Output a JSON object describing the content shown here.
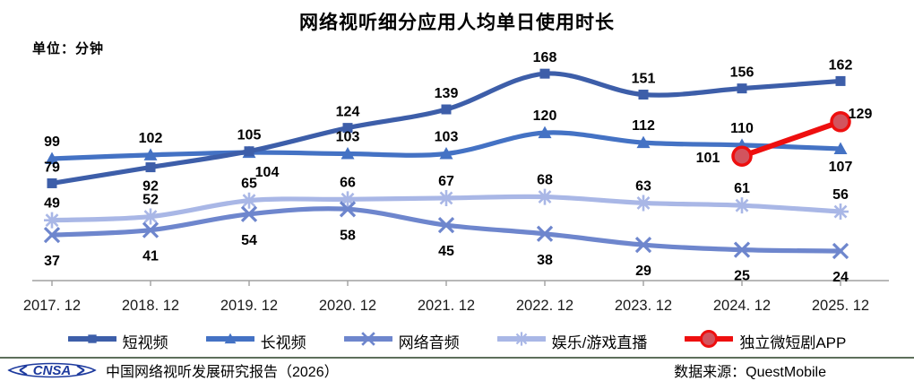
{
  "title": "网络视听细分应用人均单日使用时长",
  "unit_label": "单位：分钟",
  "chart_data": {
    "type": "line",
    "categories": [
      "2017. 12",
      "2018. 12",
      "2019. 12",
      "2020. 12",
      "2021. 12",
      "2022. 12",
      "2023. 12",
      "2024. 12",
      "2025. 12"
    ],
    "series": [
      {
        "name": "短视频",
        "marker": "square",
        "color": "#3d5ea9",
        "values": [
          79,
          92,
          105,
          124,
          139,
          168,
          151,
          156,
          162
        ]
      },
      {
        "name": "长视频",
        "marker": "triangle",
        "color": "#4472c4",
        "values": [
          99,
          102,
          104,
          103,
          103,
          120,
          112,
          110,
          107
        ]
      },
      {
        "name": "网络音频",
        "marker": "x",
        "color": "#6e86cd",
        "values": [
          37,
          41,
          54,
          58,
          45,
          38,
          29,
          25,
          24
        ]
      },
      {
        "name": "娱乐/游戏直播",
        "marker": "asterisk",
        "color": "#a9b7e6",
        "values": [
          49,
          52,
          65,
          66,
          67,
          68,
          63,
          61,
          56
        ]
      },
      {
        "name": "独立微短剧APP",
        "marker": "circle",
        "color": "#ee0f0f",
        "marker_fill": "#d2545e",
        "values": [
          null,
          null,
          null,
          null,
          null,
          null,
          null,
          101,
          129
        ]
      }
    ],
    "ylabel": "分钟",
    "ylim": [
      0,
      185
    ],
    "grid": false,
    "legend_position": "bottom",
    "axis_color": "#a0a0a0",
    "label_color": "#000000"
  },
  "footer": {
    "logo_text": "CNSA",
    "report_label": "中国网络视听发展研究报告（2026）",
    "source_label": "数据来源：QuestMobile"
  }
}
